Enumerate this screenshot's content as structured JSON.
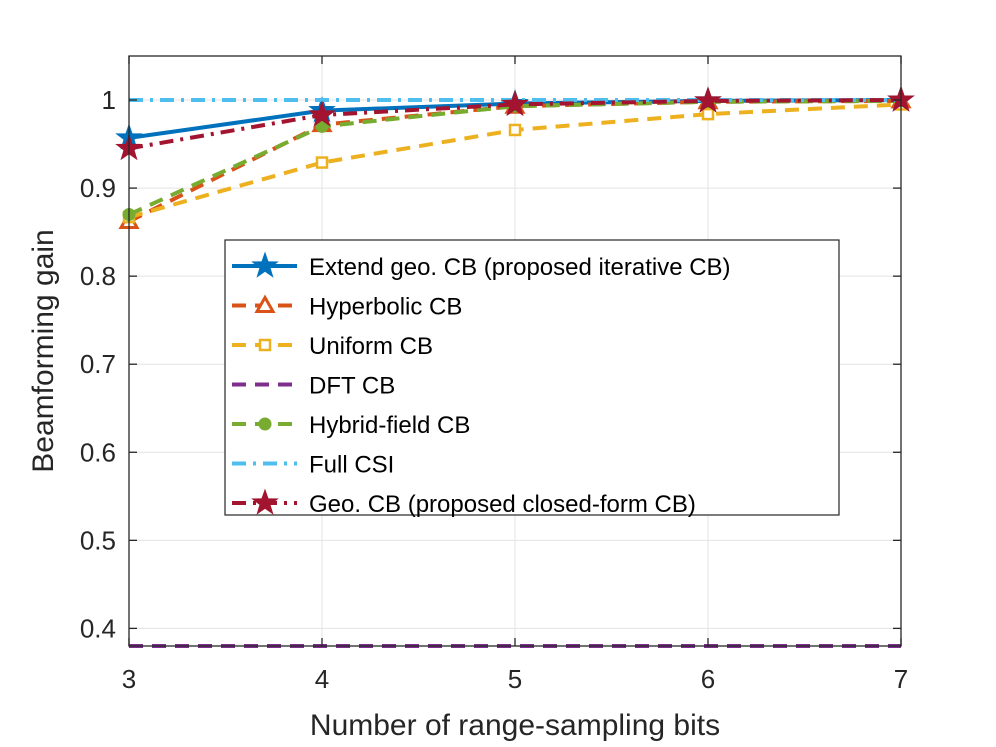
{
  "chart_data": {
    "type": "line",
    "title": "",
    "xlabel": "Number of range-sampling bits",
    "ylabel": "Beamforming gain",
    "x": [
      3,
      4,
      5,
      6,
      7
    ],
    "xlim": [
      3,
      7
    ],
    "ylim": [
      0.38,
      1.05
    ],
    "xticks": [
      3,
      4,
      5,
      6,
      7
    ],
    "yticks": [
      0.4,
      0.5,
      0.6,
      0.7,
      0.8,
      0.9,
      1
    ],
    "xtick_labels": [
      "3",
      "4",
      "5",
      "6",
      "7"
    ],
    "ytick_labels": [
      "0.4",
      "0.5",
      "0.6",
      "0.7",
      "0.8",
      "0.9",
      "1"
    ],
    "grid": true,
    "legend_position": "center",
    "series": [
      {
        "name": "Extend geo. CB (proposed iterative CB)",
        "values": [
          0.957,
          0.988,
          0.996,
          0.999,
          1.0
        ],
        "color": "#0072BD",
        "dash": "solid",
        "marker": "star"
      },
      {
        "name": "Hyperbolic CB",
        "values": [
          0.862,
          0.972,
          0.993,
          0.998,
          0.999
        ],
        "color": "#D95319",
        "dash": "dashed",
        "marker": "triangle"
      },
      {
        "name": "Uniform CB",
        "values": [
          0.867,
          0.929,
          0.966,
          0.984,
          0.995
        ],
        "color": "#EDB120",
        "dash": "dashed",
        "marker": "square"
      },
      {
        "name": "DFT CB",
        "values": [
          0.38,
          0.38,
          0.38,
          0.38,
          0.38
        ],
        "color": "#7E2F8E",
        "dash": "dashed",
        "marker": "none"
      },
      {
        "name": "Hybrid-field CB",
        "values": [
          0.87,
          0.97,
          0.993,
          0.998,
          0.999
        ],
        "color": "#77AC30",
        "dash": "dashed",
        "marker": "circle"
      },
      {
        "name": "Full CSI",
        "values": [
          1.0,
          1.0,
          1.0,
          1.0,
          1.0
        ],
        "color": "#4DBEEE",
        "dash": "dashdot",
        "marker": "none"
      },
      {
        "name": "Geo. CB (proposed closed-form CB)",
        "values": [
          0.945,
          0.983,
          0.995,
          0.999,
          1.0
        ],
        "color": "#A2142F",
        "dash": "dashdot",
        "marker": "star"
      }
    ]
  }
}
